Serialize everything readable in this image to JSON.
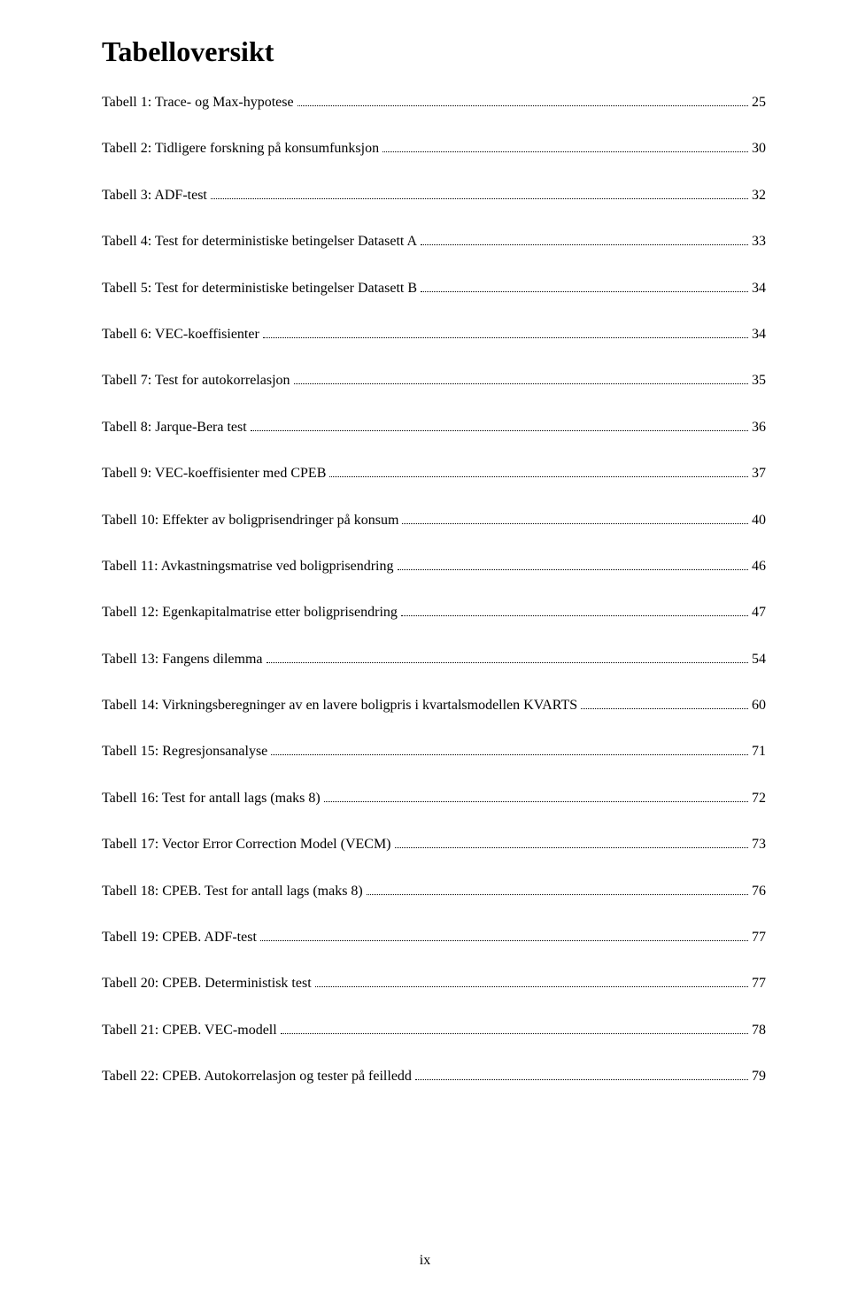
{
  "title": "Tabelloversikt",
  "page_number": "ix",
  "entries": [
    {
      "label": "Tabell 1: Trace- og Max-hypotese",
      "page": "25"
    },
    {
      "label": "Tabell 2: Tidligere forskning på konsumfunksjon",
      "page": "30"
    },
    {
      "label": "Tabell 3: ADF-test",
      "page": "32"
    },
    {
      "label": "Tabell 4: Test for deterministiske betingelser Datasett A",
      "page": "33"
    },
    {
      "label": "Tabell 5: Test for deterministiske betingelser Datasett B",
      "page": "34"
    },
    {
      "label": "Tabell 6: VEC-koeffisienter",
      "page": "34"
    },
    {
      "label": "Tabell 7: Test for autokorrelasjon",
      "page": "35"
    },
    {
      "label": "Tabell 8: Jarque-Bera test",
      "page": "36"
    },
    {
      "label": "Tabell 9: VEC-koeffisienter med CPEB",
      "page": "37"
    },
    {
      "label": "Tabell 10: Effekter av boligprisendringer på konsum",
      "page": "40"
    },
    {
      "label": "Tabell 11: Avkastningsmatrise ved boligprisendring",
      "page": "46"
    },
    {
      "label": "Tabell 12: Egenkapitalmatrise etter boligprisendring",
      "page": "47"
    },
    {
      "label": "Tabell 13: Fangens dilemma",
      "page": "54"
    },
    {
      "label": "Tabell 14: Virkningsberegninger av en lavere boligpris i kvartalsmodellen KVARTS",
      "page": "60"
    },
    {
      "label": "Tabell 15: Regresjonsanalyse",
      "page": "71"
    },
    {
      "label": "Tabell 16: Test for antall lags (maks 8)",
      "page": "72"
    },
    {
      "label": "Tabell 17: Vector Error Correction Model (VECM)",
      "page": "73"
    },
    {
      "label": "Tabell 18: CPEB. Test for antall lags (maks 8)",
      "page": "76"
    },
    {
      "label": "Tabell 19: CPEB. ADF-test",
      "page": "77"
    },
    {
      "label": "Tabell 20: CPEB. Deterministisk test",
      "page": "77"
    },
    {
      "label": "Tabell 21: CPEB. VEC-modell",
      "page": "78"
    },
    {
      "label": "Tabell 22: CPEB. Autokorrelasjon og tester på feilledd",
      "page": "79"
    }
  ]
}
